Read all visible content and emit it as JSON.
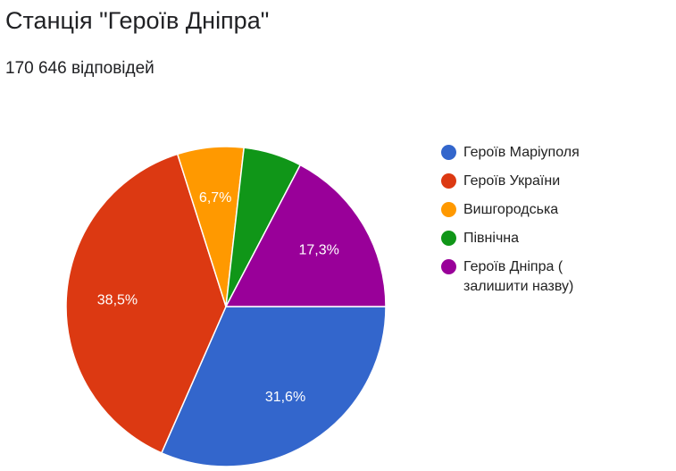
{
  "chart_data": {
    "type": "pie",
    "title": "Станція \"Героїв Дніпра\"",
    "subtitle": "170 646 відповідей",
    "categories": [
      "Героїв Маріуполя",
      "Героїв України",
      "Вишгородська",
      "Північна",
      "Героїв Дніпра ( залишити назву)"
    ],
    "values": [
      31.6,
      38.5,
      6.7,
      5.9,
      17.3
    ],
    "value_labels": [
      "31,6%",
      "38,5%",
      "6,7%",
      null,
      "17,3%"
    ],
    "colors": [
      "#3366cc",
      "#dc3912",
      "#ff9900",
      "#109618",
      "#990099"
    ],
    "legend": "right"
  }
}
